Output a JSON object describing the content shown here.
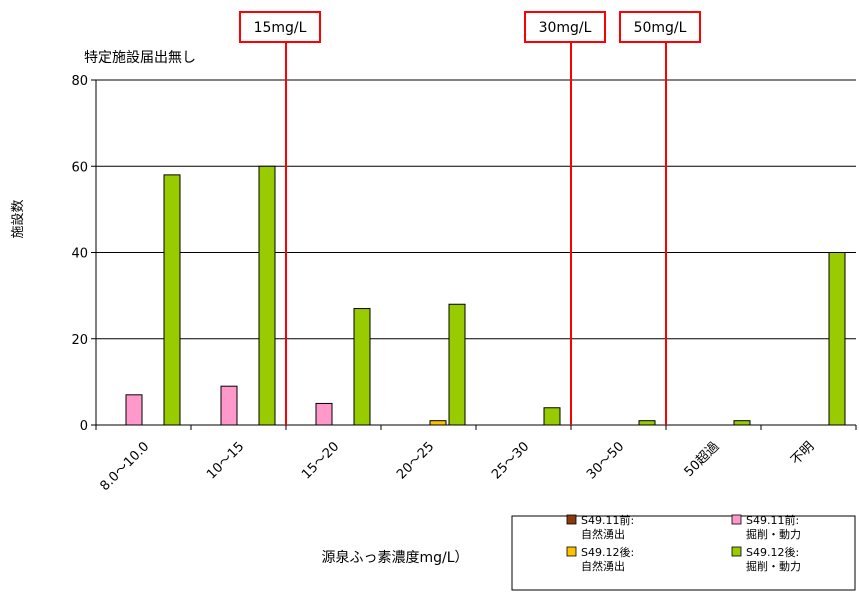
{
  "chart_data": {
    "type": "bar",
    "ylabel": "施設数",
    "xlabel": "源泉ふっ素濃度mg/L）",
    "annotation": "特定施設届出無し",
    "ylim": [
      0,
      80
    ],
    "yticks": [
      "0",
      "20",
      "40",
      "60",
      "80"
    ],
    "grid": true,
    "legend_position": "bottom-right",
    "categories": [
      "8.0～10.0",
      "10～15",
      "15～20",
      "20～25",
      "25～30",
      "30～50",
      "50超過",
      "不明"
    ],
    "series": [
      {
        "name_lines": [
          "S49.11前:",
          "自然湧出"
        ],
        "color": "#8B3A0F",
        "values": [
          0,
          0,
          0,
          0,
          0,
          0,
          0,
          0
        ]
      },
      {
        "name_lines": [
          "S49.11前:",
          "掘削・動力"
        ],
        "color": "#FF99CC",
        "values": [
          7,
          9,
          5,
          0,
          0,
          0,
          0,
          0
        ]
      },
      {
        "name_lines": [
          "S49.12後:",
          "自然湧出"
        ],
        "color": "#FFC000",
        "values": [
          0,
          0,
          0,
          1,
          0,
          0,
          0,
          0
        ]
      },
      {
        "name_lines": [
          "S49.12後:",
          "掘削・動力"
        ],
        "color": "#99CC00",
        "values": [
          58,
          60,
          27,
          28,
          4,
          1,
          1,
          40
        ]
      }
    ],
    "reference_lines": [
      {
        "label": "15mg/L",
        "between": [
          1,
          2
        ]
      },
      {
        "label": "30mg/L",
        "between": [
          4,
          5
        ]
      },
      {
        "label": "50mg/L",
        "between": [
          5,
          6
        ]
      }
    ],
    "reference_color": "#FF0000"
  }
}
